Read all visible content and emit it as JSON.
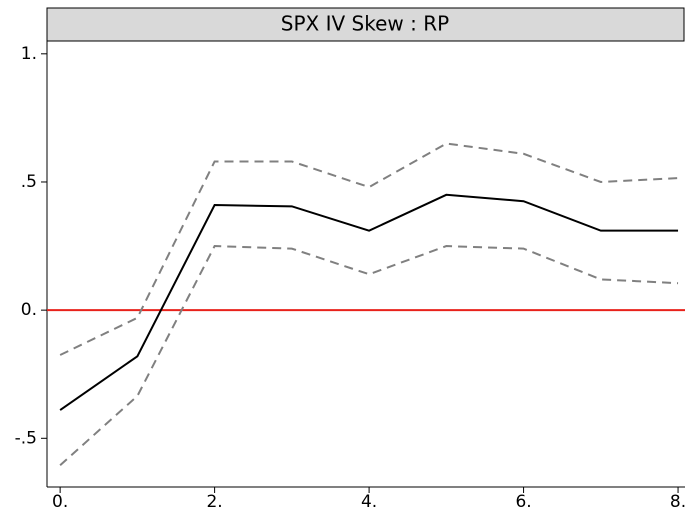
{
  "chart_data": {
    "type": "line",
    "title": "SPX IV Skew : RP",
    "x": [
      0,
      1,
      2,
      3,
      4,
      5,
      6,
      7,
      8
    ],
    "series": [
      {
        "color": "#000000",
        "dash": "solid",
        "values": [
          -0.39,
          -0.18,
          0.41,
          0.405,
          0.31,
          0.45,
          0.425,
          0.31,
          0.31
        ]
      },
      {
        "color": "#808080",
        "dash": "dashed",
        "values": [
          -0.175,
          -0.03,
          0.58,
          0.58,
          0.48,
          0.65,
          0.61,
          0.5,
          0.515
        ]
      },
      {
        "color": "#808080",
        "dash": "dashed",
        "values": [
          -0.605,
          -0.335,
          0.25,
          0.24,
          0.14,
          0.25,
          0.24,
          0.12,
          0.105
        ]
      }
    ],
    "hline": {
      "value": 0,
      "color": "#e8221b"
    },
    "xlim": [
      -0.17,
      8.09
    ],
    "ylim": [
      -0.69,
      1.05
    ],
    "xticks": [
      {
        "value": 0,
        "label": "0."
      },
      {
        "value": 2,
        "label": "2."
      },
      {
        "value": 4,
        "label": "4."
      },
      {
        "value": 6,
        "label": "6."
      },
      {
        "value": 8,
        "label": "8."
      }
    ],
    "yticks": [
      {
        "value": -0.5,
        "label": "-.5"
      },
      {
        "value": 0,
        "label": "0."
      },
      {
        "value": 0.5,
        "label": ".5"
      },
      {
        "value": 1,
        "label": "1."
      }
    ],
    "grid": false
  }
}
